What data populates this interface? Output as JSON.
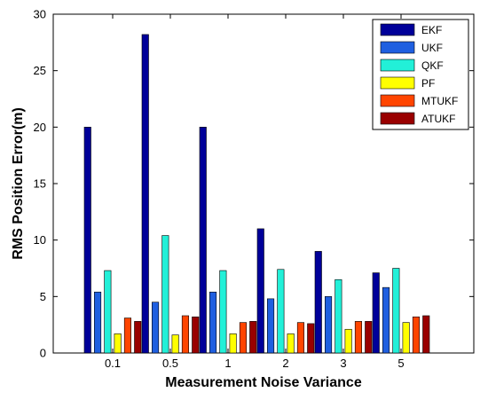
{
  "chart_data": {
    "type": "bar",
    "title": "",
    "xlabel": "Measurement Noise Variance",
    "ylabel": "RMS Position Error(m)",
    "categories": [
      "0.1",
      "0.5",
      "1",
      "2",
      "3",
      "5"
    ],
    "ylim": [
      0,
      30
    ],
    "yticks": [
      0,
      5,
      10,
      15,
      20,
      25,
      30
    ],
    "grid": false,
    "legend_position": "top-right",
    "series": [
      {
        "name": "EKF",
        "color": "#000099",
        "values": [
          20.0,
          28.2,
          20.0,
          11.0,
          9.0,
          7.1
        ]
      },
      {
        "name": "UKF",
        "color": "#1f5fe0",
        "values": [
          5.4,
          4.5,
          5.4,
          4.8,
          5.0,
          5.8
        ]
      },
      {
        "name": "QKF",
        "color": "#22f0d8",
        "values": [
          7.3,
          10.4,
          7.3,
          7.4,
          6.5,
          7.5
        ]
      },
      {
        "name": "PF",
        "color": "#ffff00",
        "values": [
          1.7,
          1.6,
          1.7,
          1.7,
          2.1,
          2.7
        ]
      },
      {
        "name": "MTUKF",
        "color": "#ff4500",
        "values": [
          3.1,
          3.3,
          2.7,
          2.7,
          2.8,
          3.2
        ]
      },
      {
        "name": "ATUKF",
        "color": "#990000",
        "values": [
          2.8,
          3.2,
          2.8,
          2.6,
          2.8,
          3.3
        ]
      }
    ]
  }
}
